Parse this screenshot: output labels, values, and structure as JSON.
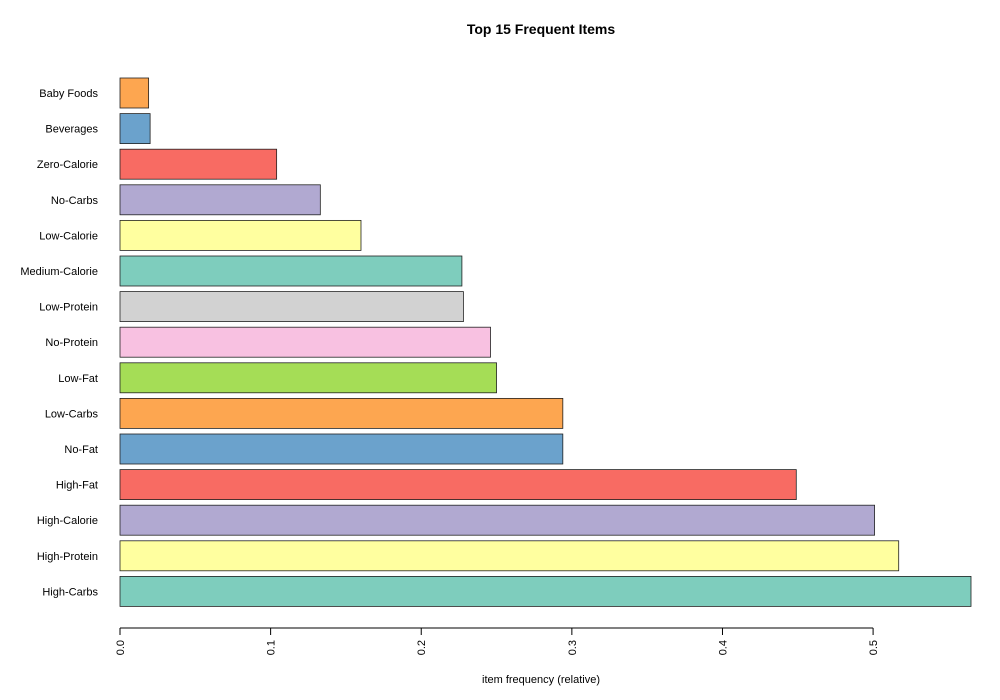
{
  "chart_data": {
    "type": "bar",
    "orientation": "horizontal",
    "title": "Top 15 Frequent Items",
    "xlabel": "item frequency (relative)",
    "ylabel": "",
    "xlim": [
      0,
      0.565
    ],
    "xticks": [
      0.0,
      0.1,
      0.2,
      0.3,
      0.4,
      0.5
    ],
    "xtick_labels": [
      "0.0",
      "0.1",
      "0.2",
      "0.3",
      "0.4",
      "0.5"
    ],
    "grid": false,
    "legend": "none",
    "categories": [
      "Baby Foods",
      "Beverages",
      "Zero-Calorie",
      "No-Carbs",
      "Low-Calorie",
      "Medium-Calorie",
      "Low-Protein",
      "No-Protein",
      "Low-Fat",
      "Low-Carbs",
      "No-Fat",
      "High-Fat",
      "High-Calorie",
      "High-Protein",
      "High-Carbs"
    ],
    "values": [
      0.019,
      0.02,
      0.104,
      0.133,
      0.16,
      0.227,
      0.228,
      0.246,
      0.25,
      0.294,
      0.294,
      0.449,
      0.501,
      0.517,
      0.565
    ],
    "colors": [
      "#FDA650",
      "#6BA2CC",
      "#F86B63",
      "#B1A9D1",
      "#FFFF9F",
      "#7ECDBD",
      "#D2D2D2",
      "#F8C1E1",
      "#A5DD56",
      "#FDA650",
      "#6BA2CC",
      "#F86B63",
      "#B1A9D1",
      "#FFFF9F",
      "#7ECDBD"
    ]
  }
}
